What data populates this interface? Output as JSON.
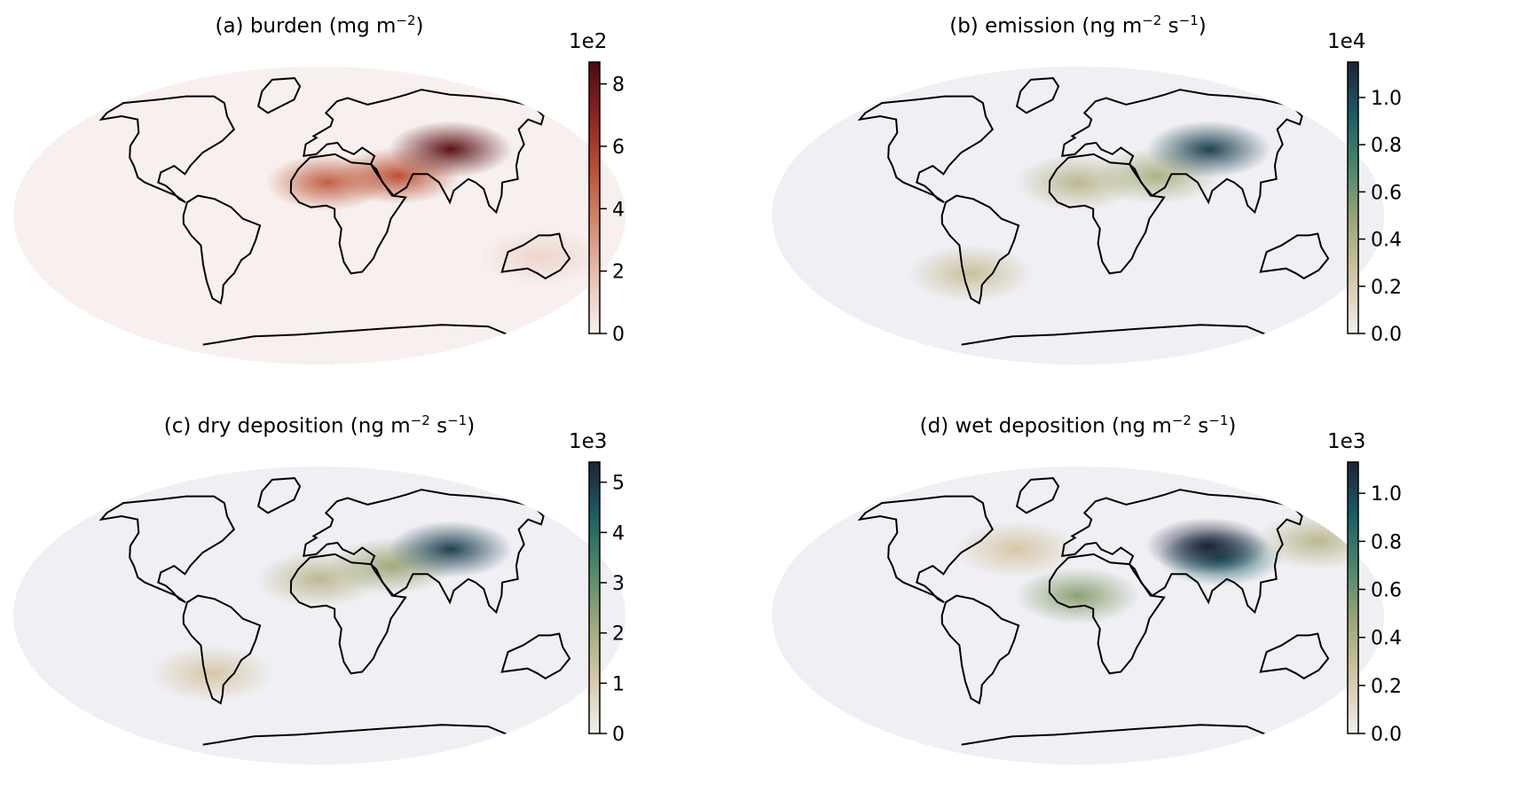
{
  "panels": [
    {
      "id": "a",
      "title": "(a) burden (mg m⁻²)",
      "title_parts": {
        "prefix": "(a) burden (mg m",
        "sup": "−2",
        "suffix": ")"
      },
      "colorbar": {
        "exponent_label": "1e2",
        "ticks": [
          "0",
          "2",
          "4",
          "6",
          "8"
        ],
        "tick_values": [
          0,
          2,
          4,
          6,
          8
        ],
        "range": [
          0,
          8.7
        ],
        "colors": [
          "#f7f0ee",
          "#e8c2b5",
          "#d48a70",
          "#bb5135",
          "#8f2320",
          "#4a0b12"
        ]
      },
      "hotspots": [
        {
          "region": "Sahara",
          "lon": 5,
          "lat": 20,
          "level": 0.55
        },
        {
          "region": "Arabia",
          "lon": 48,
          "lat": 24,
          "level": 0.6
        },
        {
          "region": "Taklamakan",
          "lon": 85,
          "lat": 40,
          "level": 0.95
        },
        {
          "region": "Australia",
          "lon": 135,
          "lat": -25,
          "level": 0.12
        }
      ]
    },
    {
      "id": "b",
      "title": "(b) emission (ng m⁻² s⁻¹)",
      "title_parts": {
        "prefix": "(b) emission (ng m",
        "sup": "−2",
        "mid": " s",
        "sup2": "−1",
        "suffix": ")"
      },
      "colorbar": {
        "exponent_label": "1e4",
        "ticks": [
          "0.0",
          "0.2",
          "0.4",
          "0.6",
          "0.8",
          "1.0"
        ],
        "tick_values": [
          0,
          0.2,
          0.4,
          0.6,
          0.8,
          1.0
        ],
        "range": [
          0,
          1.15
        ],
        "colors": [
          "#f2efee",
          "#d6c7a7",
          "#9fa97a",
          "#4f8a6a",
          "#1b5f66",
          "#1e2338"
        ]
      },
      "hotspots": [
        {
          "region": "Sahara",
          "lon": 0,
          "lat": 20,
          "level": 0.3
        },
        {
          "region": "Arabia",
          "lon": 48,
          "lat": 24,
          "level": 0.35
        },
        {
          "region": "Taklamakan",
          "lon": 85,
          "lat": 40,
          "level": 0.9
        },
        {
          "region": "Patagonia",
          "lon": -68,
          "lat": -35,
          "level": 0.25
        }
      ]
    },
    {
      "id": "c",
      "title": "(c) dry deposition (ng m⁻² s⁻¹)",
      "title_parts": {
        "prefix": "(c) dry deposition (ng m",
        "sup": "−2",
        "mid": " s",
        "sup2": "−1",
        "suffix": ")"
      },
      "colorbar": {
        "exponent_label": "1e3",
        "ticks": [
          "0",
          "1",
          "2",
          "3",
          "4",
          "5"
        ],
        "tick_values": [
          0,
          1,
          2,
          3,
          4,
          5
        ],
        "range": [
          0,
          5.4
        ],
        "colors": [
          "#f2efee",
          "#d6c7a7",
          "#9fa97a",
          "#4f8a6a",
          "#1b5f66",
          "#1e2338"
        ]
      },
      "hotspots": [
        {
          "region": "Sahara",
          "lon": 0,
          "lat": 22,
          "level": 0.3
        },
        {
          "region": "Arabia",
          "lon": 45,
          "lat": 30,
          "level": 0.4
        },
        {
          "region": "Taklamakan",
          "lon": 85,
          "lat": 40,
          "level": 0.9
        },
        {
          "region": "Patagonia",
          "lon": -68,
          "lat": -35,
          "level": 0.2
        }
      ]
    },
    {
      "id": "d",
      "title": "(d) wet deposition (ng m⁻² s⁻¹)",
      "title_parts": {
        "prefix": "(d) wet deposition (ng m",
        "sup": "−2",
        "mid": " s",
        "sup2": "−1",
        "suffix": ")"
      },
      "colorbar": {
        "exponent_label": "1e3",
        "ticks": [
          "0.0",
          "0.2",
          "0.4",
          "0.6",
          "0.8",
          "1.0"
        ],
        "tick_values": [
          0,
          0.2,
          0.4,
          0.6,
          0.8,
          1.0
        ],
        "range": [
          0,
          1.13
        ],
        "colors": [
          "#f2efee",
          "#d6c7a7",
          "#9fa97a",
          "#4f8a6a",
          "#1b5f66",
          "#1e2338"
        ]
      },
      "hotspots": [
        {
          "region": "Sahel",
          "lon": 0,
          "lat": 12,
          "level": 0.45
        },
        {
          "region": "Tibet",
          "lon": 90,
          "lat": 35,
          "level": 0.8
        },
        {
          "region": "Taklamakan",
          "lon": 85,
          "lat": 42,
          "level": 1.0
        },
        {
          "region": "North Pacific",
          "lon": 160,
          "lat": 45,
          "level": 0.3
        },
        {
          "region": "North Atlantic",
          "lon": -40,
          "lat": 40,
          "level": 0.2
        }
      ]
    }
  ],
  "ocean_background_colors": {
    "a": "#f7f0ee",
    "b": "#efeff4",
    "c": "#efeff4",
    "d": "#efeff4"
  }
}
